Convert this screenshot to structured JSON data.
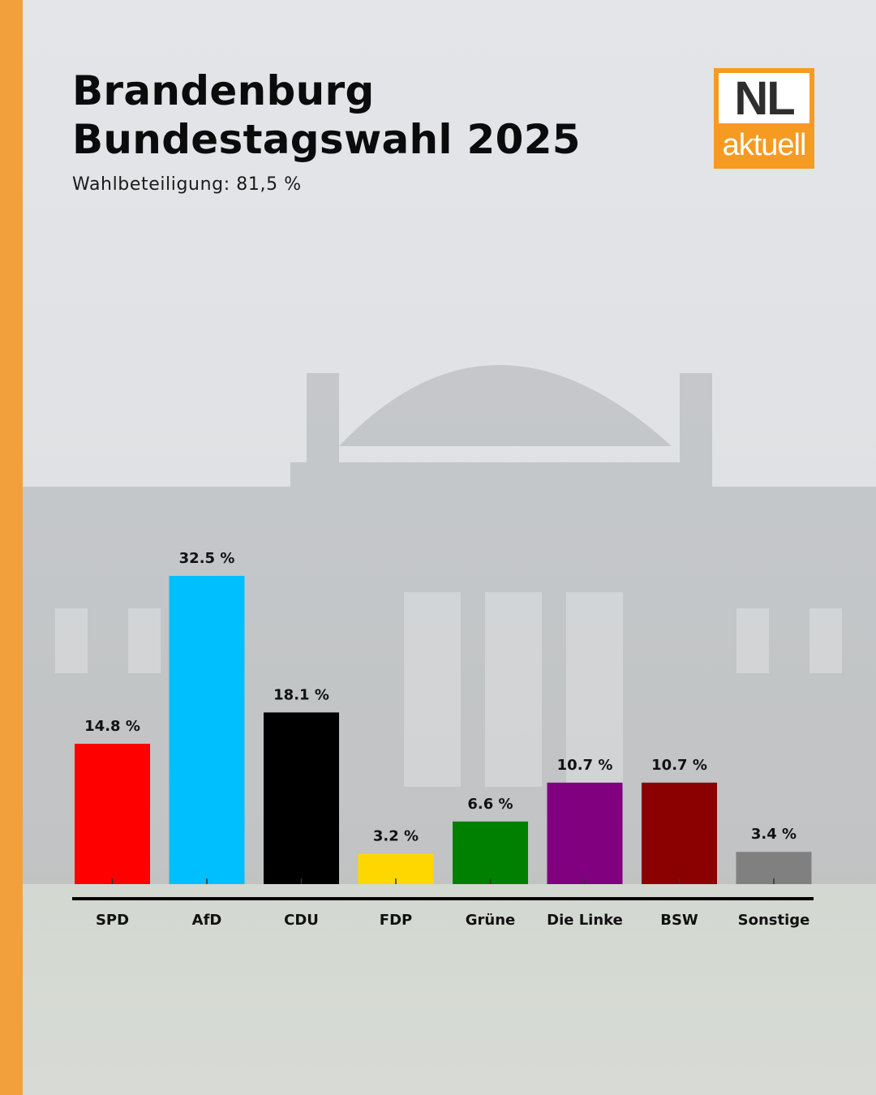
{
  "title_line1": "Brandenburg",
  "title_line2": "Bundestagswahl 2025",
  "subtitle": "Wahlbeteiligung: 81,5 %",
  "logo": {
    "top": "NL",
    "bottom": "aktuell"
  },
  "chart_data": {
    "type": "bar",
    "categories": [
      "SPD",
      "AfD",
      "CDU",
      "FDP",
      "Grüne",
      "Die Linke",
      "BSW",
      "Sonstige"
    ],
    "values": [
      14.8,
      32.5,
      18.1,
      3.2,
      6.6,
      10.7,
      10.7,
      3.4
    ],
    "labels": [
      "14.8 %",
      "32.5 %",
      "18.1 %",
      "3.2 %",
      "6.6 %",
      "10.7 %",
      "10.7 %",
      "3.4 %"
    ],
    "colors": [
      "#ff0000",
      "#00bfff",
      "#000000",
      "#ffd700",
      "#008000",
      "#800080",
      "#8b0000",
      "#808080"
    ],
    "ylim": [
      0,
      35
    ],
    "grid": false,
    "legend": "none"
  }
}
